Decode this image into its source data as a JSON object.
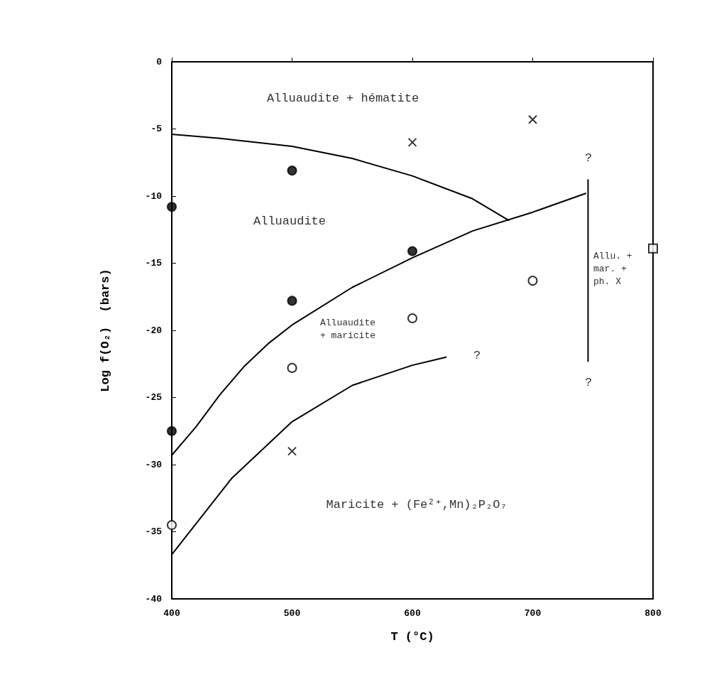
{
  "chart_data": {
    "type": "scatter",
    "xlabel": "T (°C)",
    "ylabel": "Log f(O₂)  (bars)",
    "xlim": [
      400,
      800
    ],
    "xticks": [
      400,
      500,
      600,
      700,
      800
    ],
    "ylim": [
      -40,
      0
    ],
    "yticks": [
      0,
      -5,
      -10,
      -15,
      -20,
      -25,
      -30,
      -35,
      -40
    ],
    "grid": false,
    "series": [
      {
        "marker": "circle",
        "color": "#000000",
        "x": [
          400,
          500,
          600,
          500,
          400
        ],
        "values": [
          -10.8,
          -8.1,
          -14.1,
          -17.8,
          -27.5
        ]
      },
      {
        "marker": "circle",
        "color": "#000000",
        "x": [
          500,
          600,
          700,
          400
        ],
        "values": [
          -22.8,
          -19.1,
          -16.3,
          -34.5
        ]
      },
      {
        "marker": "cross",
        "color": "#000000",
        "x": [
          600,
          700,
          500
        ],
        "values": [
          -6,
          -4.3,
          -29
        ]
      },
      {
        "marker": "square",
        "color": "#000000",
        "x": [
          800
        ],
        "values": [
          -13.9
        ]
      },
      {
        "type": "line",
        "marker": "none",
        "color": "#000000",
        "x": [
          400,
          440,
          500,
          550,
          600,
          650,
          680
        ],
        "values": [
          -5.4,
          -5.7,
          -6.3,
          -7.2,
          -8.5,
          -10.2,
          -11.8
        ]
      },
      {
        "type": "line",
        "marker": "none",
        "color": "#000000",
        "x": [
          400,
          420,
          440,
          460,
          480,
          500,
          550,
          600,
          650,
          700,
          744
        ],
        "values": [
          -29.3,
          -27.2,
          -24.8,
          -22.7,
          -21,
          -19.6,
          -16.8,
          -14.6,
          -12.6,
          -11.2,
          -9.8
        ]
      },
      {
        "type": "line",
        "marker": "none",
        "color": "#000000",
        "x": [
          400,
          450,
          500,
          550,
          600,
          628
        ],
        "values": [
          -36.7,
          -31,
          -26.8,
          -24.1,
          -22.6,
          -22
        ]
      },
      {
        "type": "line",
        "marker": "none",
        "color": "#000000",
        "x": [
          746,
          746
        ],
        "values": [
          -8.8,
          -22.3
        ]
      }
    ],
    "annotations": [
      "Alluaudite + hématite",
      "Alluaudite",
      "Alluaudite\n+ maricite",
      "?",
      "?",
      "?",
      "Allu. +\nmar. +\nph. X",
      "Maricite + (Fe²⁺,Mn)₂P₂O₇"
    ]
  }
}
